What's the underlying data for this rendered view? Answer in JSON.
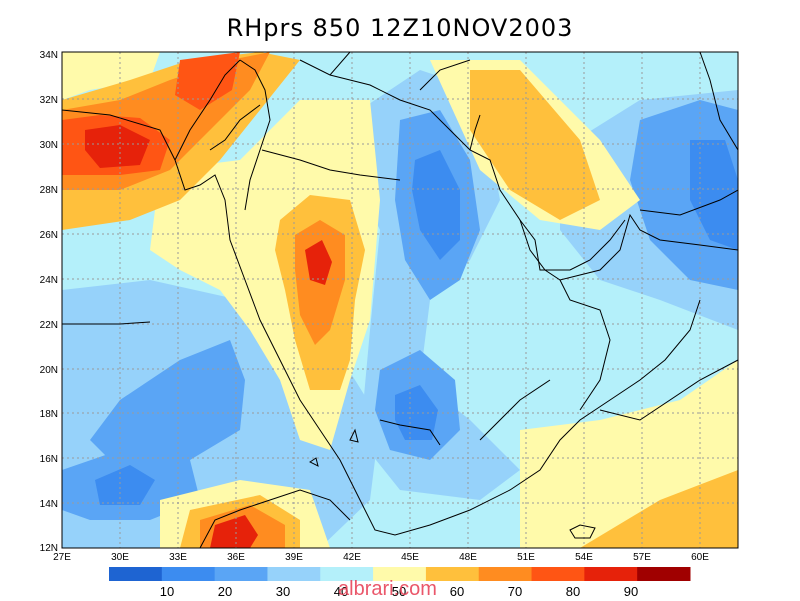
{
  "title": "RHprs 850 12Z10NOV2003",
  "lat_labels": [
    "34N",
    "32N",
    "30N",
    "28N",
    "26N",
    "24N",
    "22N",
    "20N",
    "18N",
    "16N",
    "14N",
    "12N"
  ],
  "lon_labels": [
    "27E",
    "30E",
    "33E",
    "36E",
    "39E",
    "42E",
    "45E",
    "48E",
    "51E",
    "54E",
    "57E",
    "60E"
  ],
  "colorbar": {
    "colors": [
      "#1e64d2",
      "#3c8cf0",
      "#5aa5f5",
      "#96d2fa",
      "#b4f0fa",
      "#fffaaa",
      "#ffc03c",
      "#ff8c20",
      "#ff5514",
      "#e6220a",
      "#a00000"
    ],
    "ticks": [
      "10",
      "20",
      "30",
      "40",
      "50",
      "60",
      "70",
      "80",
      "90"
    ]
  },
  "watermark": "albrari.com"
}
